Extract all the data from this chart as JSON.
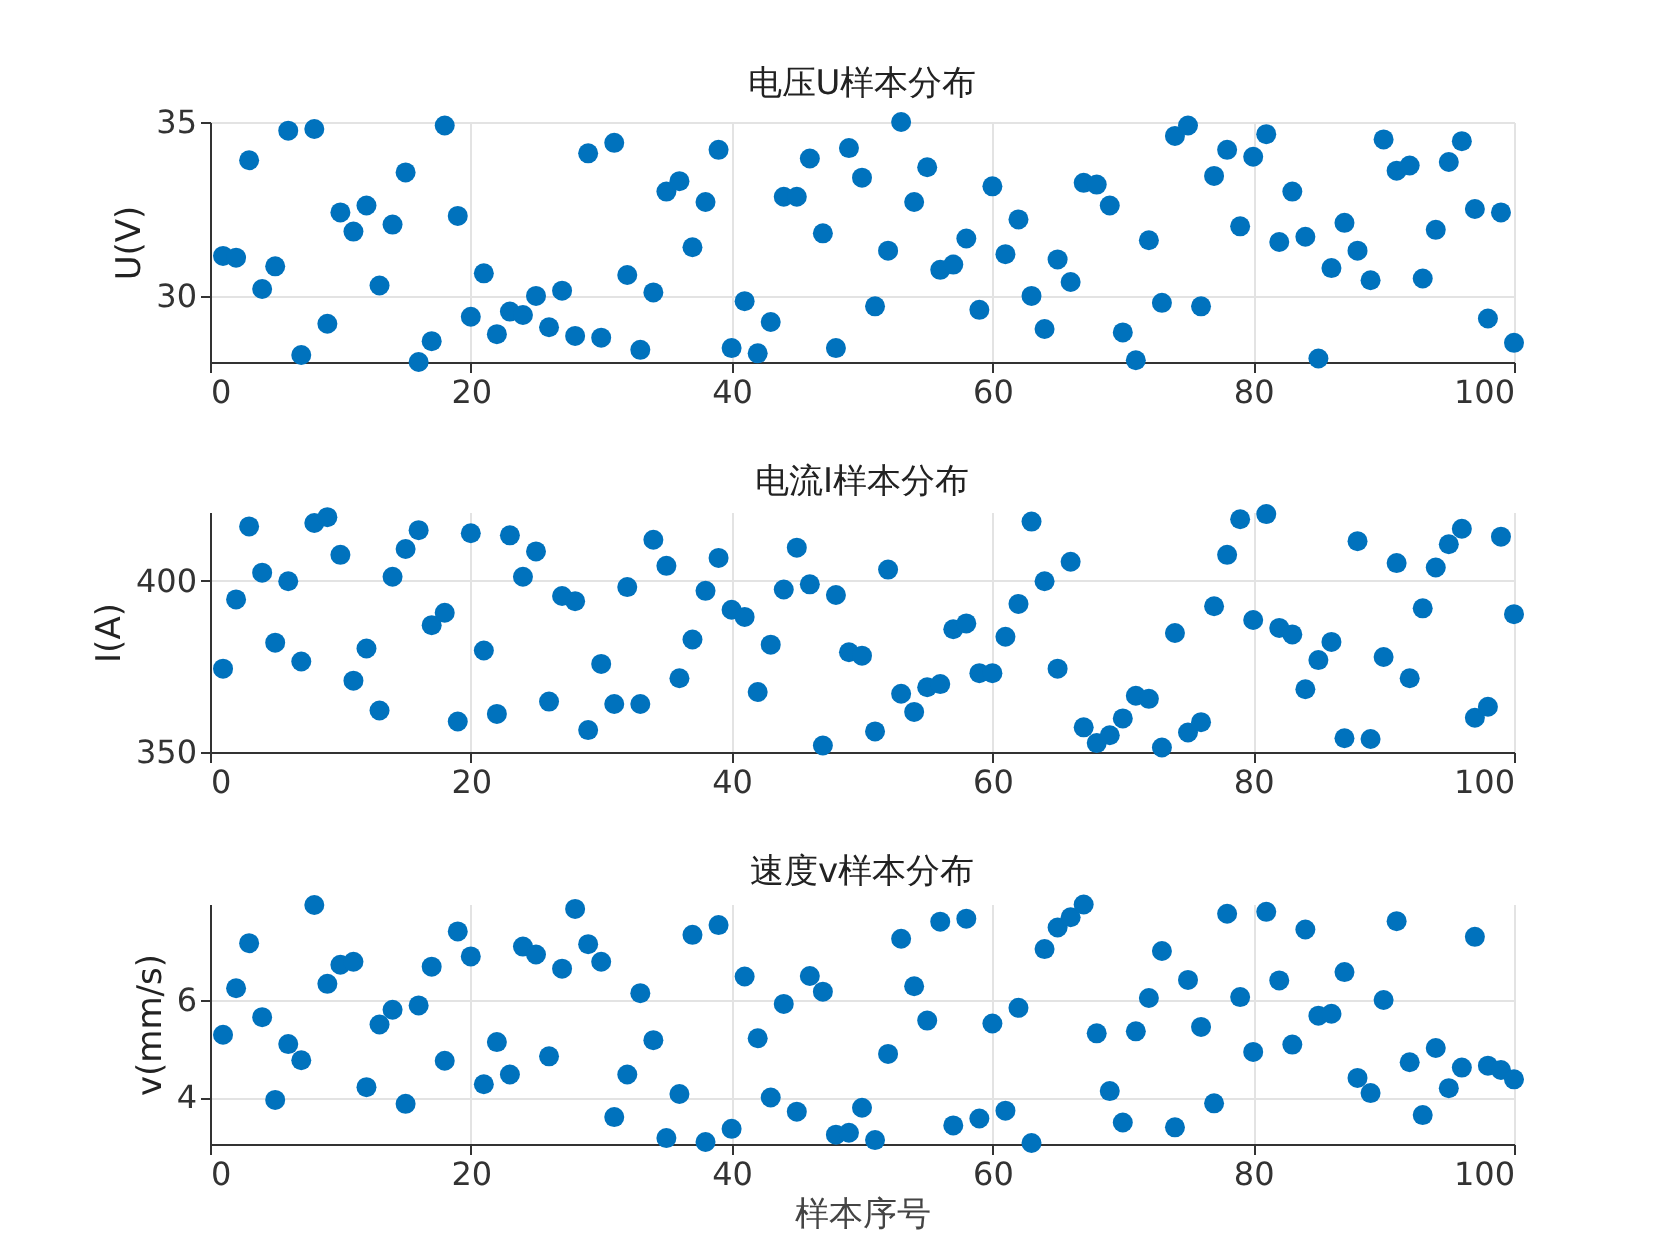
{
  "chart_data": [
    {
      "type": "scatter",
      "title": "电压U样本分布",
      "ylabel": "U(V)",
      "color": "#0072bd",
      "marker": "circle",
      "grid": true,
      "xlim": [
        0,
        100
      ],
      "xticks": [
        0,
        20,
        40,
        60,
        80,
        100
      ],
      "ylim": [
        28.1,
        35
      ],
      "yticks": [
        30,
        35
      ],
      "x": [
        1,
        2,
        3,
        4,
        5,
        6,
        7,
        8,
        9,
        10,
        11,
        12,
        13,
        14,
        15,
        16,
        17,
        18,
        19,
        20,
        21,
        22,
        23,
        24,
        25,
        26,
        27,
        28,
        29,
        30,
        31,
        32,
        33,
        34,
        35,
        36,
        37,
        38,
        39,
        40,
        41,
        42,
        43,
        44,
        45,
        46,
        47,
        48,
        49,
        50,
        51,
        52,
        53,
        54,
        55,
        56,
        57,
        58,
        59,
        60,
        61,
        62,
        63,
        64,
        65,
        66,
        67,
        68,
        69,
        70,
        71,
        72,
        73,
        74,
        75,
        76,
        77,
        78,
        79,
        80,
        81,
        82,
        83,
        84,
        85,
        86,
        87,
        88,
        89,
        90,
        91,
        92,
        93,
        94,
        95,
        96,
        97,
        98,
        99,
        100
      ],
      "values": [
        31.15,
        31.1,
        33.9,
        30.2,
        30.85,
        34.75,
        28.3,
        34.8,
        29.2,
        32.4,
        31.85,
        32.6,
        30.3,
        32.05,
        33.55,
        28.1,
        28.7,
        34.9,
        32.3,
        29.4,
        30.65,
        28.9,
        29.55,
        29.45,
        30.0,
        29.1,
        30.15,
        28.85,
        34.1,
        28.8,
        34.4,
        30.6,
        28.45,
        30.1,
        33.0,
        33.3,
        31.4,
        32.7,
        34.2,
        28.5,
        29.85,
        28.35,
        29.25,
        32.85,
        32.85,
        33.95,
        31.8,
        28.5,
        34.25,
        33.4,
        29.7,
        31.3,
        35.0,
        32.7,
        33.7,
        30.75,
        30.9,
        31.65,
        29.6,
        33.15,
        31.2,
        32.2,
        30.0,
        29.05,
        31.05,
        30.4,
        33.25,
        33.2,
        32.6,
        28.95,
        28.15,
        31.6,
        29.8,
        34.6,
        34.9,
        29.7,
        33.45,
        34.2,
        32.0,
        34.0,
        34.65,
        31.55,
        33.0,
        31.7,
        28.2,
        30.8,
        32.1,
        31.3,
        30.45,
        34.5,
        33.6,
        33.75,
        30.5,
        31.9,
        33.85,
        34.45,
        32.5,
        29.35,
        32.4,
        28.65
      ]
    },
    {
      "type": "scatter",
      "title": "电流I样本分布",
      "ylabel": "I(A)",
      "color": "#0072bd",
      "marker": "circle",
      "grid": true,
      "xlim": [
        0,
        100
      ],
      "xticks": [
        0,
        20,
        40,
        60,
        80,
        100
      ],
      "ylim": [
        350,
        420
      ],
      "yticks": [
        350,
        400
      ],
      "x": [
        1,
        2,
        3,
        4,
        5,
        6,
        7,
        8,
        9,
        10,
        11,
        12,
        13,
        14,
        15,
        16,
        17,
        18,
        19,
        20,
        21,
        22,
        23,
        24,
        25,
        26,
        27,
        28,
        29,
        30,
        31,
        32,
        33,
        34,
        35,
        36,
        37,
        38,
        39,
        40,
        41,
        42,
        43,
        44,
        45,
        46,
        47,
        48,
        49,
        50,
        51,
        52,
        53,
        54,
        55,
        56,
        57,
        58,
        59,
        60,
        61,
        62,
        63,
        64,
        65,
        66,
        67,
        68,
        69,
        70,
        71,
        72,
        73,
        74,
        75,
        76,
        77,
        78,
        79,
        80,
        81,
        82,
        83,
        84,
        85,
        86,
        87,
        88,
        89,
        90,
        91,
        92,
        93,
        94,
        95,
        96,
        97,
        98,
        99,
        100
      ],
      "values": [
        374.3,
        394.5,
        415.8,
        402.3,
        381.9,
        399.8,
        376.4,
        416.8,
        418.5,
        407.5,
        370.8,
        380.2,
        362.1,
        401.1,
        409.2,
        414.7,
        387.0,
        390.6,
        358.9,
        413.8,
        379.6,
        361.1,
        413.2,
        401.1,
        408.5,
        364.7,
        395.5,
        394.0,
        356.4,
        375.7,
        364.0,
        398.1,
        364.0,
        411.9,
        404.3,
        371.5,
        382.8,
        397.0,
        406.6,
        391.5,
        389.4,
        367.5,
        381.3,
        397.4,
        409.6,
        398.9,
        351.9,
        395.8,
        379.1,
        378.1,
        356.0,
        403.2,
        367.0,
        361.7,
        368.9,
        369.8,
        385.8,
        387.5,
        373.0,
        373.0,
        383.6,
        393.2,
        417.2,
        399.8,
        374.3,
        405.5,
        357.2,
        352.6,
        354.9,
        359.8,
        366.4,
        365.5,
        351.3,
        384.7,
        355.7,
        358.7,
        392.5,
        407.5,
        417.9,
        388.5,
        419.4,
        386.2,
        384.3,
        368.3,
        376.8,
        382.1,
        354.0,
        411.5,
        353.8,
        377.7,
        405.1,
        371.5,
        391.9,
        403.8,
        410.6,
        415.1,
        360.0,
        363.2,
        412.8,
        390.2
      ]
    },
    {
      "type": "scatter",
      "title": "速度v样本分布",
      "ylabel": "v(mm/s)",
      "xlabel": "样本序号",
      "color": "#0072bd",
      "marker": "circle",
      "grid": true,
      "xlim": [
        0,
        100
      ],
      "xticks": [
        0,
        20,
        40,
        60,
        80,
        100
      ],
      "ylim": [
        3.05,
        7.95
      ],
      "yticks": [
        4,
        6
      ],
      "x": [
        1,
        2,
        3,
        4,
        5,
        6,
        7,
        8,
        9,
        10,
        11,
        12,
        13,
        14,
        15,
        16,
        17,
        18,
        19,
        20,
        21,
        22,
        23,
        24,
        25,
        26,
        27,
        28,
        29,
        30,
        31,
        32,
        33,
        34,
        35,
        36,
        37,
        38,
        39,
        40,
        41,
        42,
        43,
        44,
        45,
        46,
        47,
        48,
        49,
        50,
        51,
        52,
        53,
        54,
        55,
        56,
        57,
        58,
        59,
        60,
        61,
        62,
        63,
        64,
        65,
        66,
        67,
        68,
        69,
        70,
        71,
        72,
        73,
        74,
        75,
        76,
        77,
        78,
        79,
        80,
        81,
        82,
        83,
        84,
        85,
        86,
        87,
        88,
        89,
        90,
        91,
        92,
        93,
        94,
        95,
        96,
        97,
        98,
        99,
        100
      ],
      "values": [
        5.28,
        6.23,
        7.15,
        5.64,
        3.95,
        5.09,
        4.76,
        7.93,
        6.32,
        6.71,
        6.77,
        4.21,
        5.49,
        5.79,
        3.87,
        5.88,
        6.67,
        4.75,
        7.39,
        6.88,
        4.27,
        5.13,
        4.47,
        7.08,
        6.92,
        4.84,
        6.63,
        7.85,
        7.13,
        6.77,
        3.6,
        4.47,
        6.13,
        5.17,
        3.17,
        4.07,
        7.32,
        3.09,
        7.52,
        3.36,
        6.47,
        5.21,
        4.0,
        5.91,
        3.71,
        6.48,
        6.16,
        3.24,
        3.28,
        3.79,
        3.13,
        4.89,
        7.24,
        6.27,
        5.57,
        7.59,
        3.43,
        7.65,
        3.57,
        5.51,
        3.73,
        5.83,
        3.07,
        7.03,
        7.47,
        7.68,
        7.94,
        5.31,
        4.13,
        3.49,
        5.35,
        6.03,
        6.99,
        3.39,
        6.4,
        5.44,
        3.88,
        7.75,
        6.05,
        4.93,
        7.79,
        6.39,
        5.08,
        7.43,
        5.67,
        5.71,
        6.56,
        4.4,
        4.09,
        5.99,
        7.6,
        4.72,
        3.64,
        5.01,
        4.19,
        4.61,
        7.28,
        4.65,
        4.56,
        4.37
      ]
    }
  ]
}
